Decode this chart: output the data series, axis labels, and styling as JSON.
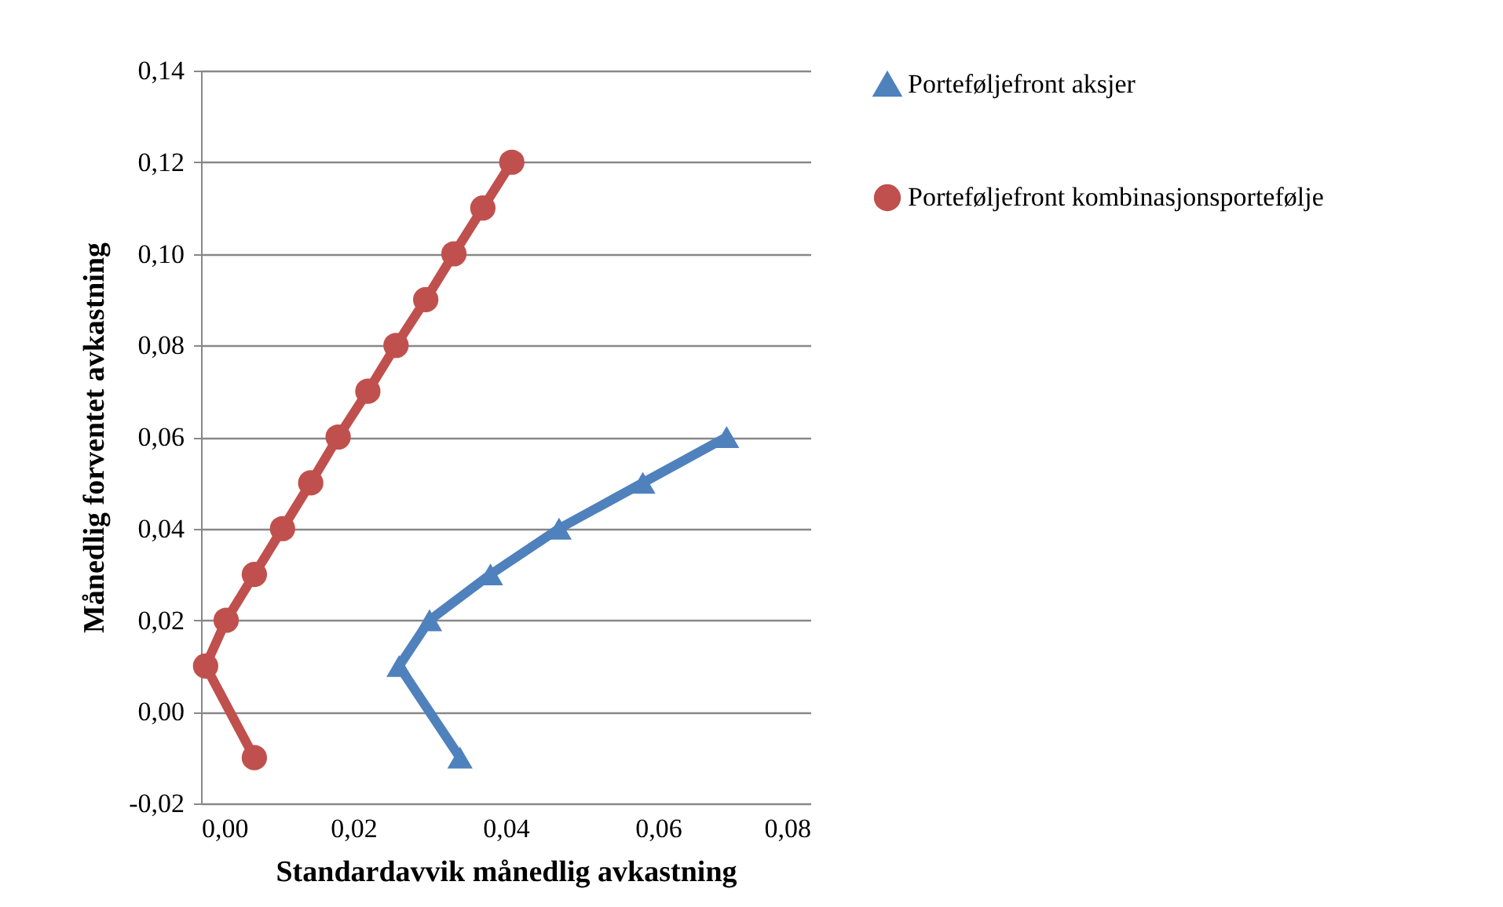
{
  "chart_data": {
    "type": "line",
    "xlabel": "Standardavvik månedlig avkastning",
    "ylabel": "Månedlig forventet avkastning",
    "xlim": [
      0,
      0.08
    ],
    "ylim": [
      -0.02,
      0.14
    ],
    "xticks": [
      {
        "value": 0,
        "label": "0,00"
      },
      {
        "value": 0.02,
        "label": "0,02"
      },
      {
        "value": 0.04,
        "label": "0,04"
      },
      {
        "value": 0.06,
        "label": "0,06"
      },
      {
        "value": 0.08,
        "label": "0,08"
      }
    ],
    "yticks": [
      {
        "value": -0.02,
        "label": "-0,02"
      },
      {
        "value": 0,
        "label": "0,00"
      },
      {
        "value": 0.02,
        "label": "0,02"
      },
      {
        "value": 0.04,
        "label": "0,04"
      },
      {
        "value": 0.06,
        "label": "0,06"
      },
      {
        "value": 0.08,
        "label": "0,08"
      },
      {
        "value": 0.1,
        "label": "0,10"
      },
      {
        "value": 0.12,
        "label": "0,12"
      },
      {
        "value": 0.14,
        "label": "0,14"
      }
    ],
    "grid": "y",
    "legend": "right",
    "series": [
      {
        "name": "Porteføljefront aksjer",
        "color": "#4f81bd",
        "marker": "triangle",
        "x": [
          0.034,
          0.026,
          0.03,
          0.038,
          0.047,
          0.058,
          0.069
        ],
        "values": [
          -0.01,
          0.01,
          0.02,
          0.03,
          0.04,
          0.05,
          0.06
        ]
      },
      {
        "name": "Porteføljefront kombinasjonsportefølje",
        "color": "#c0504d",
        "marker": "circle",
        "x": [
          0.007,
          0.0006,
          0.0033,
          0.007,
          0.0107,
          0.0144,
          0.018,
          0.0219,
          0.0256,
          0.0295,
          0.0332,
          0.037,
          0.0408
        ],
        "values": [
          -0.01,
          0.01,
          0.02,
          0.03,
          0.04,
          0.05,
          0.06,
          0.07,
          0.08,
          0.09,
          0.1,
          0.11,
          0.12
        ]
      }
    ]
  }
}
